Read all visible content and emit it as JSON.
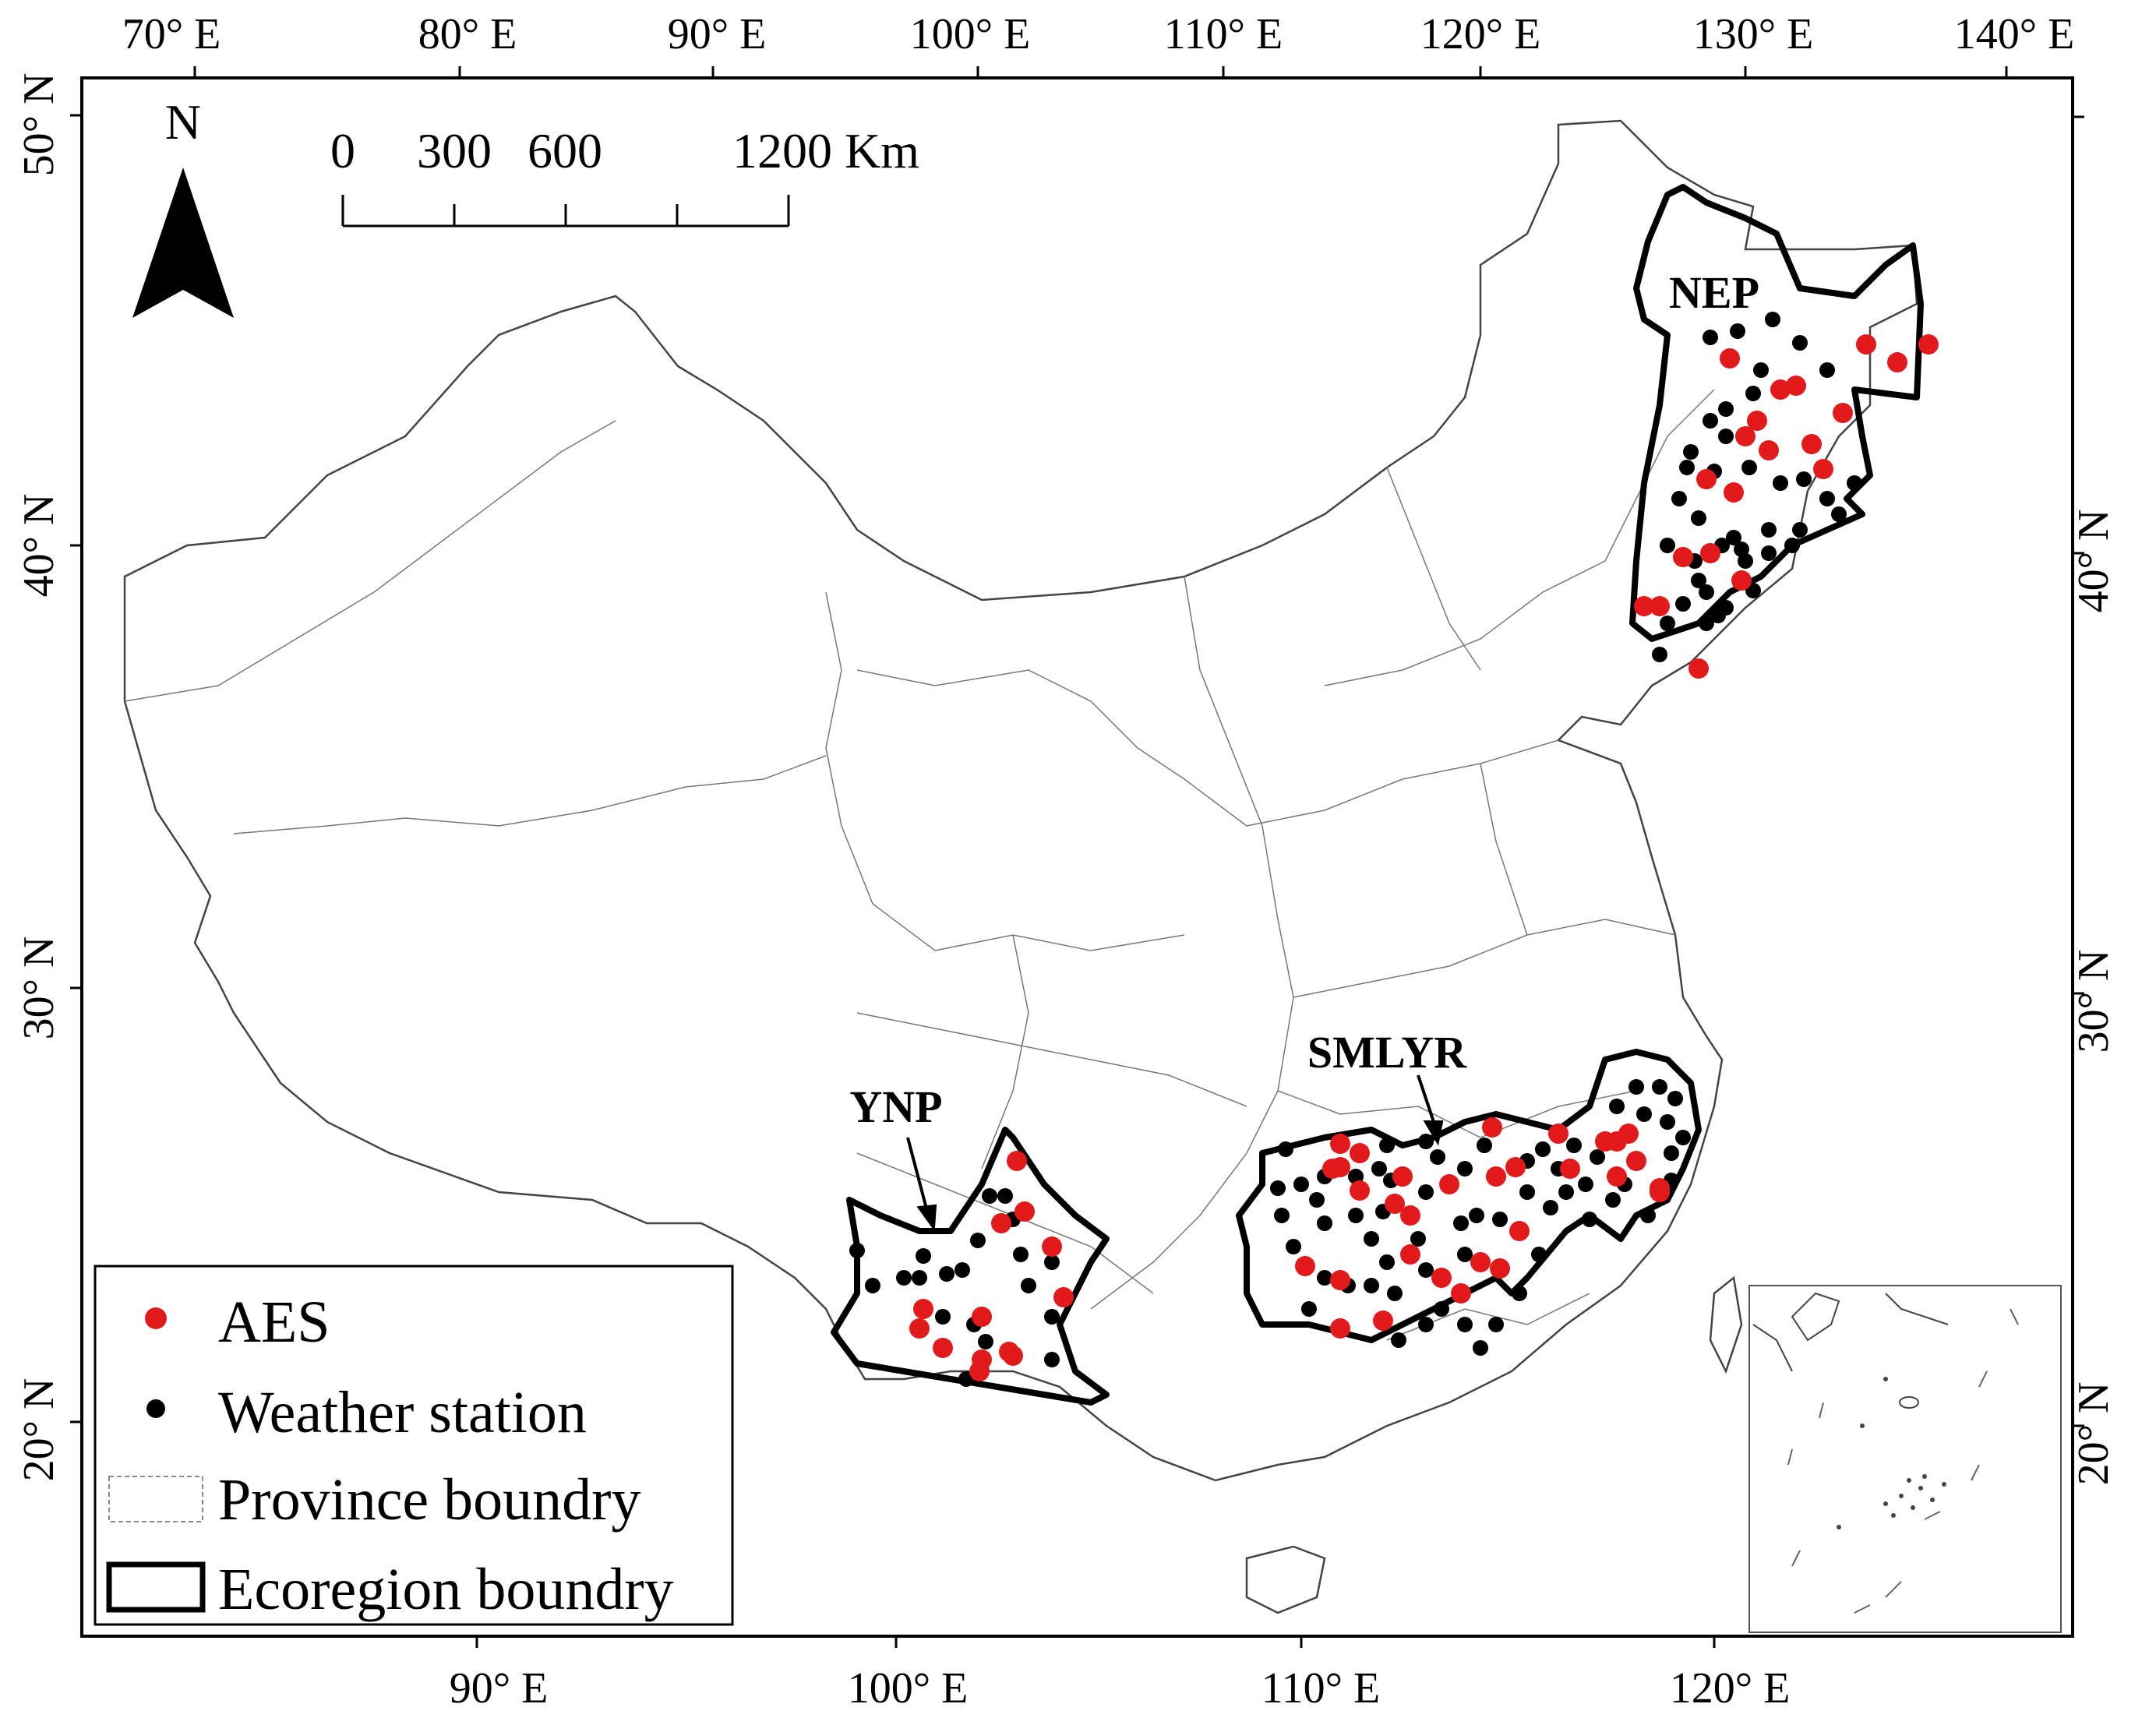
{
  "colors": {
    "aes": "#e31a1c",
    "station": "#000000",
    "province_line": "#555555",
    "ecoregion_line": "#000000"
  },
  "axes": {
    "top_lon": [
      "70° E",
      "80° E",
      "90° E",
      "100° E",
      "110° E",
      "120° E",
      "130° E",
      "140° E"
    ],
    "bottom_lon": [
      "90° E",
      "100° E",
      "110° E",
      "120° E"
    ],
    "left_lat": [
      "50° N",
      "40° N",
      "30° N",
      "20° N"
    ],
    "right_lat": [
      "40° N",
      "30° N",
      "20° N"
    ]
  },
  "north_arrow": {
    "label": "N",
    "icon": "north-arrow-icon"
  },
  "scale_bar": {
    "ticks": [
      "0",
      "300",
      "600",
      "1200 Km"
    ]
  },
  "regions": {
    "nep": "NEP",
    "smlyr": "SMLYR",
    "ynp": "YNP"
  },
  "legend": {
    "aes": "AES",
    "weather": "Weather station",
    "province": "Province boundry",
    "ecoregion": "Ecoregion boundry"
  },
  "inset": {
    "icon": "south-china-sea-inset"
  }
}
